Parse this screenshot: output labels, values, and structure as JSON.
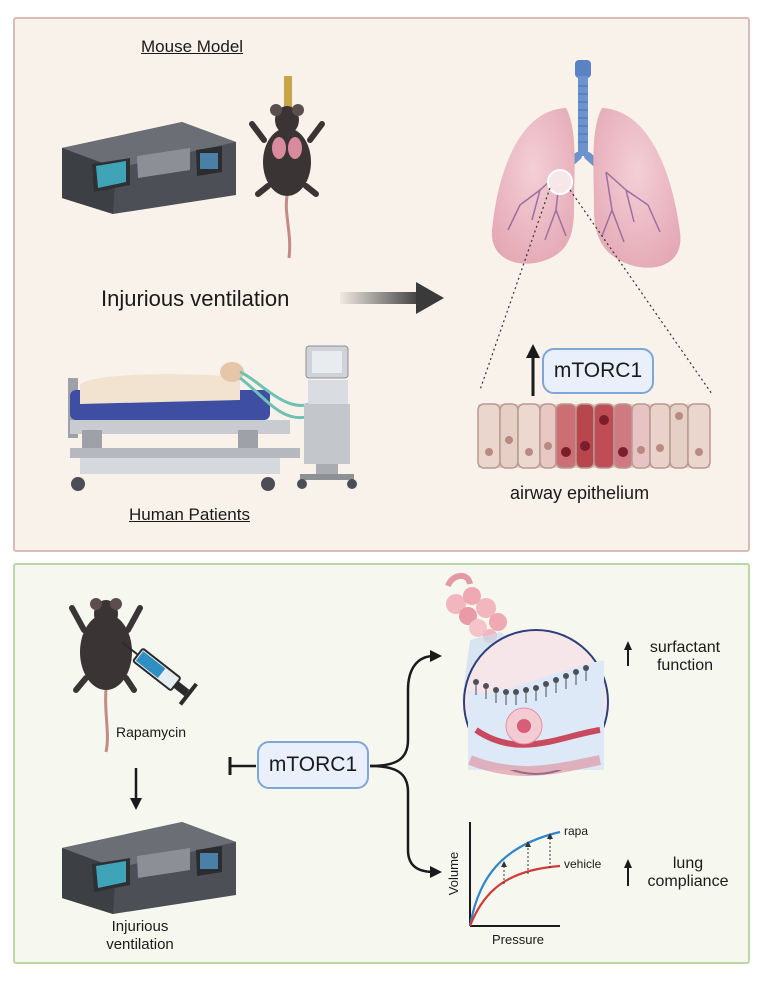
{
  "top_panel": {
    "mouse_model_label": "Mouse Model",
    "human_patients_label": "Human Patients",
    "injurious_ventilation_label": "Injurious ventilation",
    "mtorc1_label": "mTORC1",
    "airway_epithelium_label": "airway epithelium"
  },
  "bottom_panel": {
    "rapamycin_label": "Rapamycin",
    "injurious_ventilation_line1": "Injurious",
    "injurious_ventilation_line2": "ventilation",
    "mtorc1_label": "mTORC1",
    "surfactant_line1": "surfactant",
    "surfactant_line2": "function",
    "lung_line1": "lung",
    "lung_line2": "compliance",
    "graph": {
      "ylabel": "Volume",
      "xlabel": "Pressure",
      "series": [
        {
          "name": "rapa",
          "color": "#2f86c9"
        },
        {
          "name": "vehicle",
          "color": "#d03a3a"
        }
      ]
    }
  },
  "colors": {
    "top_panel_bg": "#f8f2ea",
    "top_panel_border": "#d9bdb4",
    "bottom_panel_bg": "#f6f8ef",
    "bottom_panel_border": "#b9d8a6",
    "pill_bg": "#e9f0fb",
    "pill_border": "#7ea6d8"
  }
}
